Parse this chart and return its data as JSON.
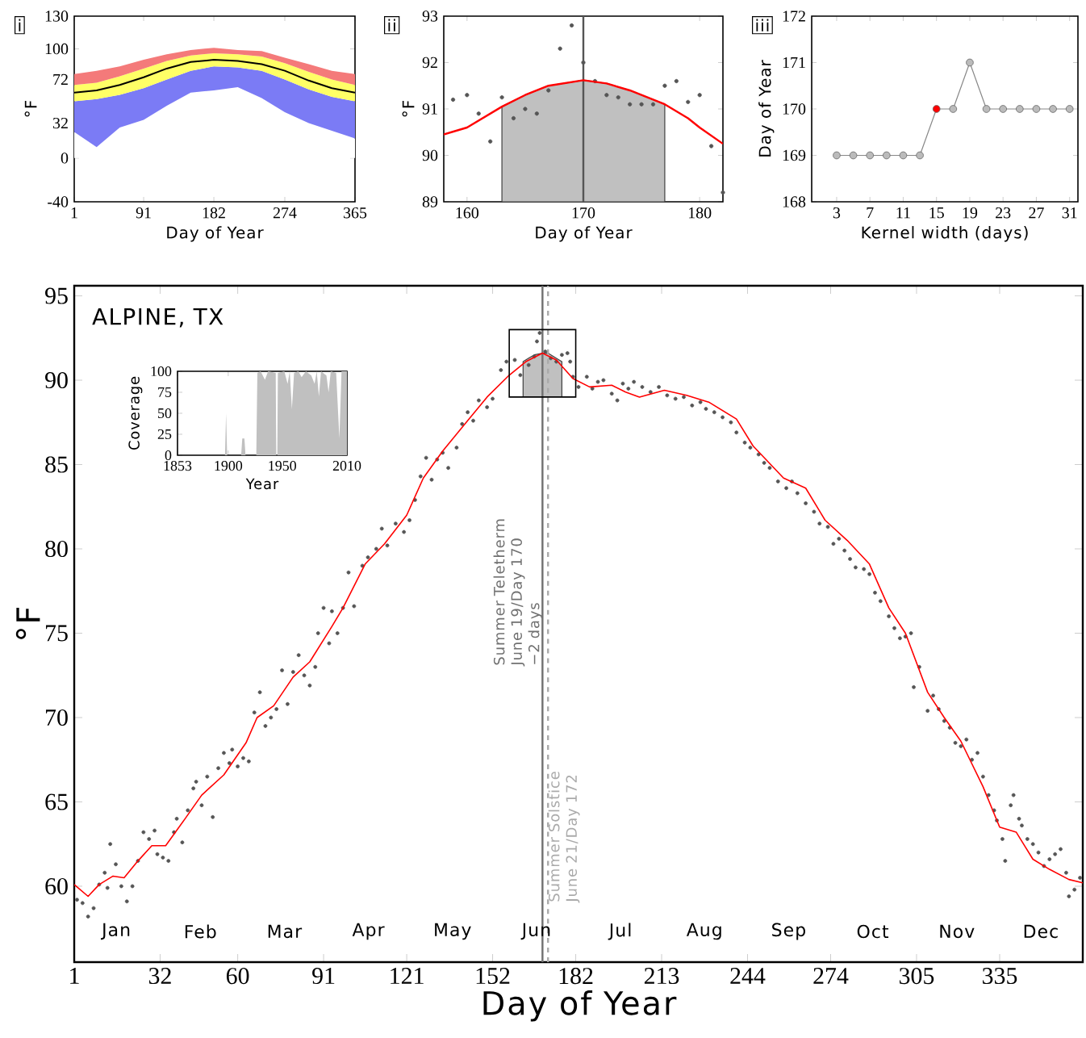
{
  "chart_data": [
    {
      "type": "area",
      "stacked": true,
      "title": "i",
      "xlabel": "Day of Year",
      "ylabel": "°F",
      "x": [
        1,
        30,
        60,
        91,
        121,
        152,
        182,
        213,
        244,
        274,
        305,
        335,
        365
      ],
      "xlim": [
        1,
        365
      ],
      "ylim": [
        -40,
        130
      ],
      "xticks": [
        1,
        91,
        182,
        274,
        365
      ],
      "yticks": [
        -40,
        0,
        32,
        72,
        100,
        130
      ],
      "series": [
        {
          "color": "#ffffff",
          "values": [
            24,
            10,
            28,
            35,
            48,
            60,
            62,
            65,
            55,
            42,
            32,
            25,
            18
          ]
        },
        {
          "color": "#7b7bf5",
          "values": [
            28,
            44,
            30,
            29,
            24,
            20,
            22,
            18,
            25,
            30,
            31,
            31,
            34
          ]
        },
        {
          "color": "#ffff66",
          "values": [
            15,
            15,
            17,
            18,
            17,
            14,
            12,
            12,
            13,
            15,
            16,
            16,
            15
          ]
        },
        {
          "color": "#f47a7a",
          "values": [
            10,
            11,
            9,
            8,
            6,
            5,
            5,
            4,
            5,
            5,
            7,
            8,
            10
          ]
        },
        {
          "type": "line",
          "color": "#000000",
          "values": [
            60,
            62,
            67,
            74,
            82,
            88,
            90,
            89,
            86,
            80,
            71,
            64,
            60
          ]
        }
      ]
    },
    {
      "type": "scatter",
      "title": "ii",
      "xlabel": "Day of Year",
      "ylabel": "°F",
      "xlim": [
        158,
        182
      ],
      "ylim": [
        89,
        93
      ],
      "xticks": [
        160,
        170,
        180
      ],
      "yticks": [
        89,
        90,
        91,
        92,
        93
      ],
      "series": [
        {
          "type": "area",
          "color": "#c0c0c0",
          "x": [
            163,
            165,
            167,
            170,
            172,
            174,
            176,
            177
          ],
          "values": [
            91.05,
            91.3,
            91.5,
            91.62,
            91.55,
            91.4,
            91.2,
            91.1
          ]
        },
        {
          "color": "#555555",
          "marker": "circle",
          "x": [
            158.8,
            160,
            161,
            162,
            163,
            164,
            165,
            166,
            167,
            168,
            169,
            170,
            171,
            172,
            173,
            174,
            175,
            176,
            177,
            178,
            179,
            180,
            181,
            182
          ],
          "values": [
            91.2,
            91.3,
            90.9,
            90.3,
            91.25,
            90.8,
            91.0,
            90.9,
            91.4,
            92.3,
            92.8,
            92.0,
            91.6,
            91.3,
            91.25,
            91.1,
            91.1,
            91.1,
            91.5,
            91.6,
            91.15,
            91.3,
            90.2,
            89.2
          ]
        },
        {
          "type": "line",
          "color": "#ff0000",
          "marker": "none",
          "x": [
            158,
            160,
            163,
            165,
            167,
            170,
            172,
            174,
            176,
            177,
            179,
            180,
            182
          ],
          "values": [
            90.45,
            90.6,
            91.05,
            91.3,
            91.5,
            91.62,
            91.55,
            91.4,
            91.2,
            91.1,
            90.8,
            90.6,
            90.25
          ]
        }
      ],
      "ref_lines": [
        {
          "axis": "x",
          "value": 170,
          "color": "#555555"
        }
      ]
    },
    {
      "type": "line",
      "title": "iii",
      "xlabel": "Kernel width (days)",
      "ylabel": "Day of Year",
      "xlim": [
        0,
        32
      ],
      "ylim": [
        168,
        172
      ],
      "xticks": [
        3,
        7,
        11,
        15,
        19,
        23,
        27,
        31
      ],
      "yticks": [
        168,
        169,
        170,
        171,
        172
      ],
      "marker": "circle",
      "series": [
        {
          "color": "#888888",
          "x": [
            3,
            5,
            7,
            9,
            11,
            13,
            15,
            17,
            19,
            21,
            23,
            25,
            27,
            29,
            31
          ],
          "values": [
            169,
            169,
            169,
            169,
            169,
            169,
            170,
            170,
            171,
            170,
            170,
            170,
            170,
            170,
            170
          ],
          "colors": [
            "#bbbbbb",
            "#bbbbbb",
            "#bbbbbb",
            "#bbbbbb",
            "#bbbbbb",
            "#bbbbbb",
            "#ff0000",
            "#bbbbbb",
            "#bbbbbb",
            "#bbbbbb",
            "#bbbbbb",
            "#bbbbbb",
            "#bbbbbb",
            "#bbbbbb",
            "#bbbbbb"
          ]
        }
      ]
    },
    {
      "type": "scatter",
      "title": "ALPINE, TX",
      "xlabel": "Day of Year",
      "ylabel": "°F",
      "xlim": [
        1,
        365
      ],
      "ylim": [
        55.5,
        95.6
      ],
      "xticks": [
        1,
        32,
        60,
        91,
        121,
        152,
        182,
        213,
        244,
        274,
        305,
        335
      ],
      "yticks": [
        60,
        65,
        70,
        75,
        80,
        85,
        90,
        95
      ],
      "series": [
        {
          "type": "area",
          "color": "#c0c0c0",
          "x": [
            163,
            165,
            167,
            170,
            172,
            174,
            176,
            177
          ],
          "values": [
            91.1,
            91.3,
            91.5,
            91.6,
            91.6,
            91.4,
            91.2,
            91.1
          ]
        },
        {
          "color": "#555555",
          "marker": "circle",
          "x": [
            2,
            4,
            6,
            8,
            10,
            12,
            13,
            14,
            16,
            18,
            20,
            22,
            24,
            26,
            28,
            30,
            31,
            33,
            35,
            37,
            38,
            40,
            42,
            44,
            45,
            47,
            49,
            51,
            53,
            55,
            57,
            58,
            60,
            62,
            64,
            66,
            68,
            70,
            72,
            74,
            76,
            78,
            80,
            82,
            84,
            86,
            88,
            89,
            91,
            93,
            94,
            96,
            98,
            100,
            102,
            105,
            107,
            110,
            112,
            114,
            117,
            120,
            122,
            124,
            126,
            128,
            130,
            132,
            134,
            136,
            139,
            141,
            143,
            145,
            147,
            150,
            152,
            155,
            157,
            160,
            162,
            165,
            167,
            168,
            169,
            171,
            173,
            175,
            177,
            179,
            180,
            181,
            183,
            186,
            188,
            190,
            192,
            195,
            197,
            199,
            201,
            203,
            206,
            209,
            212,
            215,
            218,
            221,
            224,
            227,
            229,
            232,
            235,
            238,
            240,
            243,
            245,
            248,
            250,
            252,
            255,
            258,
            260,
            262,
            265,
            268,
            270,
            273,
            275,
            277,
            279,
            281,
            283,
            286,
            288,
            290,
            292,
            295,
            297,
            299,
            301,
            303,
            304,
            306,
            309,
            311,
            313,
            315,
            317,
            319,
            321,
            323,
            325,
            327,
            329,
            331,
            333,
            334,
            336,
            337,
            339,
            340,
            342,
            343,
            345,
            347,
            349,
            351,
            353,
            355,
            357,
            359,
            360,
            362,
            364
          ],
          "values": [
            59.2,
            59.0,
            58.2,
            58.7,
            60.1,
            60.8,
            59.9,
            62.5,
            61.3,
            60.0,
            59.1,
            60.0,
            61.5,
            63.2,
            62.8,
            63.3,
            61.9,
            61.7,
            61.5,
            63.2,
            64.0,
            62.6,
            64.5,
            65.8,
            66.2,
            64.8,
            66.5,
            64.1,
            67.0,
            67.9,
            67.3,
            68.1,
            67.1,
            67.6,
            67.4,
            70.3,
            71.5,
            69.5,
            70.0,
            70.5,
            72.8,
            70.8,
            72.7,
            73.7,
            72.5,
            71.9,
            73.0,
            75.0,
            76.5,
            74.4,
            76.3,
            75.0,
            76.5,
            78.6,
            76.6,
            79.0,
            79.5,
            80.0,
            81.2,
            80.2,
            81.5,
            81.0,
            81.7,
            82.9,
            84.3,
            85.4,
            84.1,
            85.3,
            85.7,
            84.8,
            86.0,
            87.4,
            88.1,
            87.6,
            88.8,
            88.4,
            88.9,
            90.6,
            91.1,
            91.2,
            90.3,
            90.9,
            91.4,
            92.3,
            92.8,
            91.7,
            91.3,
            91.1,
            91.5,
            91.6,
            91.1,
            90.2,
            89.6,
            90.2,
            89.5,
            89.9,
            90.0,
            89.2,
            88.8,
            89.8,
            89.5,
            89.9,
            89.6,
            89.3,
            89.6,
            89.1,
            88.9,
            89.0,
            88.5,
            88.7,
            88.3,
            88.1,
            87.8,
            87.5,
            86.9,
            86.3,
            86.0,
            85.6,
            85.1,
            84.8,
            84.0,
            83.6,
            84.0,
            83.3,
            82.7,
            82.2,
            81.5,
            81.3,
            80.3,
            80.6,
            79.9,
            79.4,
            78.9,
            78.8,
            78.5,
            77.4,
            76.9,
            76.0,
            75.3,
            74.7,
            74.8,
            75.0,
            71.8,
            73.0,
            70.4,
            71.3,
            70.5,
            69.8,
            69.4,
            68.5,
            68.3,
            68.7,
            67.5,
            67.9,
            66.5,
            65.4,
            64.5,
            63.9,
            62.8,
            61.5,
            64.8,
            65.4,
            64.0,
            63.6,
            62.8,
            62.5,
            62.0,
            61.2,
            61.6,
            61.9,
            62.2,
            60.8,
            59.4,
            59.8,
            60.5
          ]
        },
        {
          "type": "line",
          "color": "#ff0000",
          "marker": "none",
          "x": [
            1,
            6,
            10,
            15,
            19,
            24,
            29,
            34,
            41,
            47,
            55,
            63,
            67,
            73,
            80,
            86,
            94,
            98,
            106,
            113,
            121,
            127,
            134,
            142,
            150,
            158,
            164,
            170,
            175,
            181,
            187,
            195,
            200,
            205,
            214,
            222,
            230,
            240,
            246,
            257,
            265,
            272,
            280,
            288,
            295,
            301,
            309,
            315,
            321,
            329,
            335,
            341,
            347,
            353,
            360,
            365
          ],
          "values": [
            60.1,
            59.4,
            60.1,
            60.6,
            60.5,
            61.5,
            62.4,
            62.4,
            64.0,
            65.4,
            66.6,
            68.5,
            70.0,
            70.7,
            72.4,
            73.3,
            75.4,
            76.5,
            79.1,
            80.3,
            82.0,
            84.2,
            85.8,
            87.4,
            89.0,
            90.3,
            91.1,
            91.6,
            91.2,
            90.1,
            89.6,
            89.7,
            89.3,
            89.0,
            89.4,
            89.1,
            88.7,
            87.7,
            86.1,
            84.2,
            83.6,
            81.7,
            80.5,
            79.1,
            76.5,
            75.0,
            71.5,
            70.0,
            68.6,
            65.9,
            63.5,
            63.2,
            61.6,
            61.0,
            60.4,
            60.2
          ]
        }
      ],
      "ref_lines": [
        {
          "axis": "x",
          "value": 170,
          "color": "#707070",
          "label": "Summer Teletherm June 19/Day 170 −2 days"
        },
        {
          "axis": "x",
          "value": 172,
          "color": "#aaaaaa",
          "line_style": "dashed",
          "label": "Summer Solstice June 21/Day 172"
        }
      ],
      "annotations": [
        "Jan",
        "Feb",
        "Mar",
        "Apr",
        "May",
        "Jun",
        "Jul",
        "Aug",
        "Sep",
        "Oct",
        "Nov",
        "Dec"
      ]
    },
    {
      "type": "area",
      "xlabel": "Year",
      "ylabel": "Coverage",
      "color": "#c0c0c0",
      "xlim": [
        1853,
        2010
      ],
      "ylim": [
        0,
        100
      ],
      "xticks": [
        1853,
        1900,
        1950,
        2010
      ],
      "yticks": [
        0,
        25,
        50,
        75,
        100
      ],
      "x": [
        1853,
        1897,
        1898,
        1899,
        1912,
        1913,
        1915,
        1916,
        1926,
        1927,
        1930,
        1934,
        1937,
        1944,
        1944.5,
        1945.5,
        1946,
        1952,
        1955,
        1957,
        1959,
        1961,
        1965,
        1968,
        1972,
        1977,
        1980,
        1982,
        1984,
        1986,
        1991,
        1993,
        1995,
        2000,
        2003,
        2005,
        2010
      ],
      "values": [
        0,
        0,
        50,
        0,
        0,
        20,
        20,
        0,
        0,
        98,
        100,
        90,
        100,
        98,
        0,
        0,
        98,
        100,
        85,
        100,
        55,
        98,
        100,
        93,
        100,
        95,
        85,
        100,
        70,
        100,
        95,
        75,
        100,
        98,
        20,
        100,
        100
      ]
    }
  ]
}
